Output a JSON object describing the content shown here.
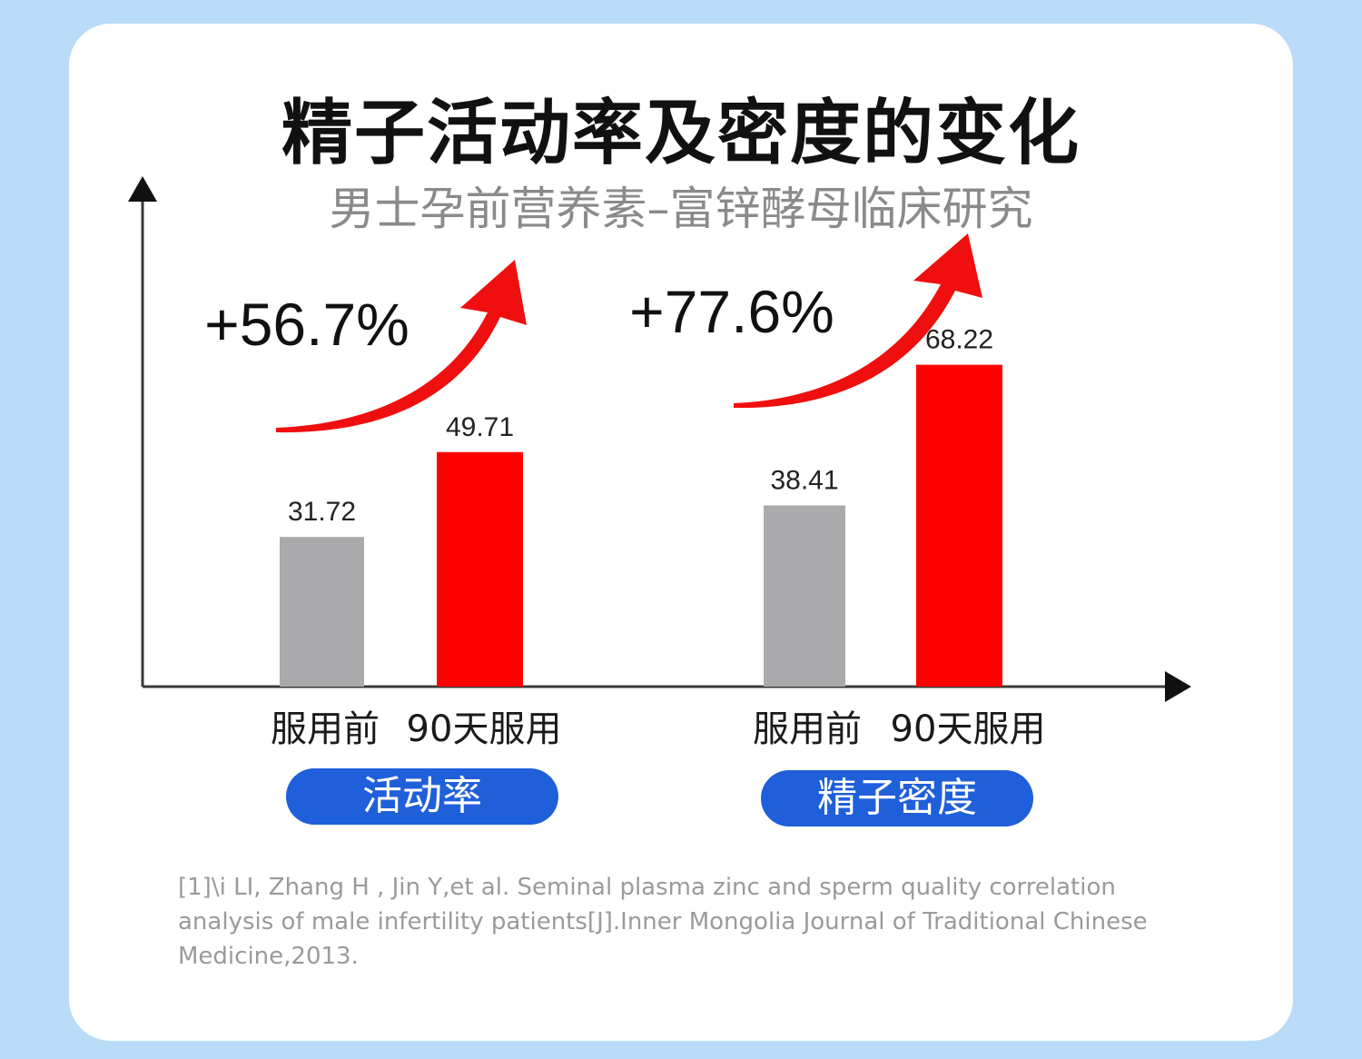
{
  "header": {
    "title": "精子活动率及密度的变化",
    "subtitle": "男士孕前营养素–富锌酵母临床研究"
  },
  "chart_data": {
    "type": "bar",
    "groups": [
      {
        "label": "活动率",
        "change": "+56.7%",
        "categories": [
          "服用前",
          "90天服用"
        ],
        "values": [
          31.72,
          49.71
        ],
        "value_labels": [
          "31.72",
          "49.71"
        ]
      },
      {
        "label": "精子密度",
        "change": "+77.6%",
        "categories": [
          "服用前",
          "90天服用"
        ],
        "values": [
          38.41,
          68.22
        ],
        "value_labels": [
          "38.41",
          "68.22"
        ]
      }
    ],
    "bar_colors": [
      "#aaa9ab",
      "#ff0000"
    ],
    "ylim": [
      0,
      80
    ],
    "grid": false
  },
  "colors": {
    "background": "#b9dbf8",
    "card": "#ffffff",
    "before_bar": "#aaa9ab",
    "after_bar": "#ff0000",
    "arrow": "#ef0f0f",
    "pill": "#1f5fd9"
  },
  "footer": {
    "citation": "[1]\\i LI, Zhang H , Jin Y,et al. Seminal plasma zinc and sperm quality correlation analysis of male infertility patients[J].Inner Mongolia Journal of Traditional Chinese Medicine,2013."
  }
}
